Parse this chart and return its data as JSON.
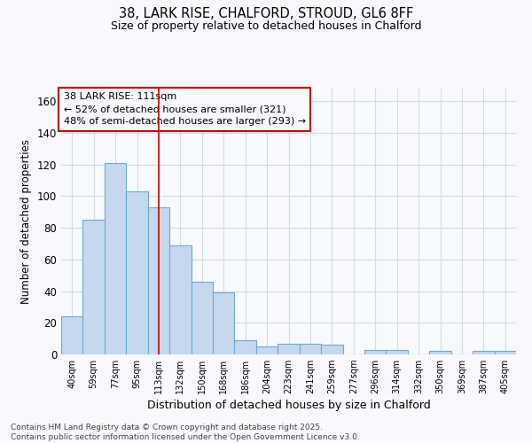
{
  "title_line1": "38, LARK RISE, CHALFORD, STROUD, GL6 8FF",
  "title_line2": "Size of property relative to detached houses in Chalford",
  "xlabel": "Distribution of detached houses by size in Chalford",
  "ylabel": "Number of detached properties",
  "categories": [
    "40sqm",
    "59sqm",
    "77sqm",
    "95sqm",
    "113sqm",
    "132sqm",
    "150sqm",
    "168sqm",
    "186sqm",
    "204sqm",
    "223sqm",
    "241sqm",
    "259sqm",
    "277sqm",
    "296sqm",
    "314sqm",
    "332sqm",
    "350sqm",
    "369sqm",
    "387sqm",
    "405sqm"
  ],
  "values": [
    24,
    85,
    121,
    103,
    93,
    69,
    46,
    39,
    9,
    5,
    7,
    7,
    6,
    0,
    3,
    3,
    0,
    2,
    0,
    2,
    2
  ],
  "bar_color": "#c5d8ed",
  "bar_edge_color": "#6aaad4",
  "vline_index": 4,
  "vline_color": "#cc0000",
  "annotation_text": "38 LARK RISE: 111sqm\n← 52% of detached houses are smaller (321)\n48% of semi-detached houses are larger (293) →",
  "annotation_edge_color": "#cc0000",
  "ylim_max": 168,
  "yticks": [
    0,
    20,
    40,
    60,
    80,
    100,
    120,
    140,
    160
  ],
  "bg_color": "#f7f9fc",
  "grid_color": "#d0dce8",
  "footer_line1": "Contains HM Land Registry data © Crown copyright and database right 2025.",
  "footer_line2": "Contains public sector information licensed under the Open Government Licence v3.0."
}
